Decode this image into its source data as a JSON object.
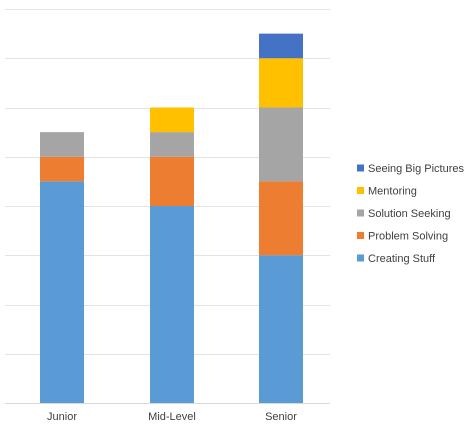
{
  "chart_data": {
    "type": "bar",
    "stacked": true,
    "categories": [
      "Junior",
      "Mid-Level",
      "Senior"
    ],
    "series": [
      {
        "name": "Creating Stuff",
        "color": "#5B9BD5",
        "values": [
          9,
          8,
          6
        ]
      },
      {
        "name": "Problem Solving",
        "color": "#ED7D31",
        "values": [
          1,
          2,
          3
        ]
      },
      {
        "name": "Solution Seeking",
        "color": "#A5A5A5",
        "values": [
          1,
          1,
          3
        ]
      },
      {
        "name": "Mentoring",
        "color": "#FFC000",
        "values": [
          0,
          1,
          2
        ]
      },
      {
        "name": "Seeing Big Pictures",
        "color": "#4472C4",
        "values": [
          0,
          0,
          1
        ]
      }
    ],
    "ylim": [
      0,
      16
    ],
    "grid": true,
    "gridline_count": 8,
    "legend": "right"
  }
}
